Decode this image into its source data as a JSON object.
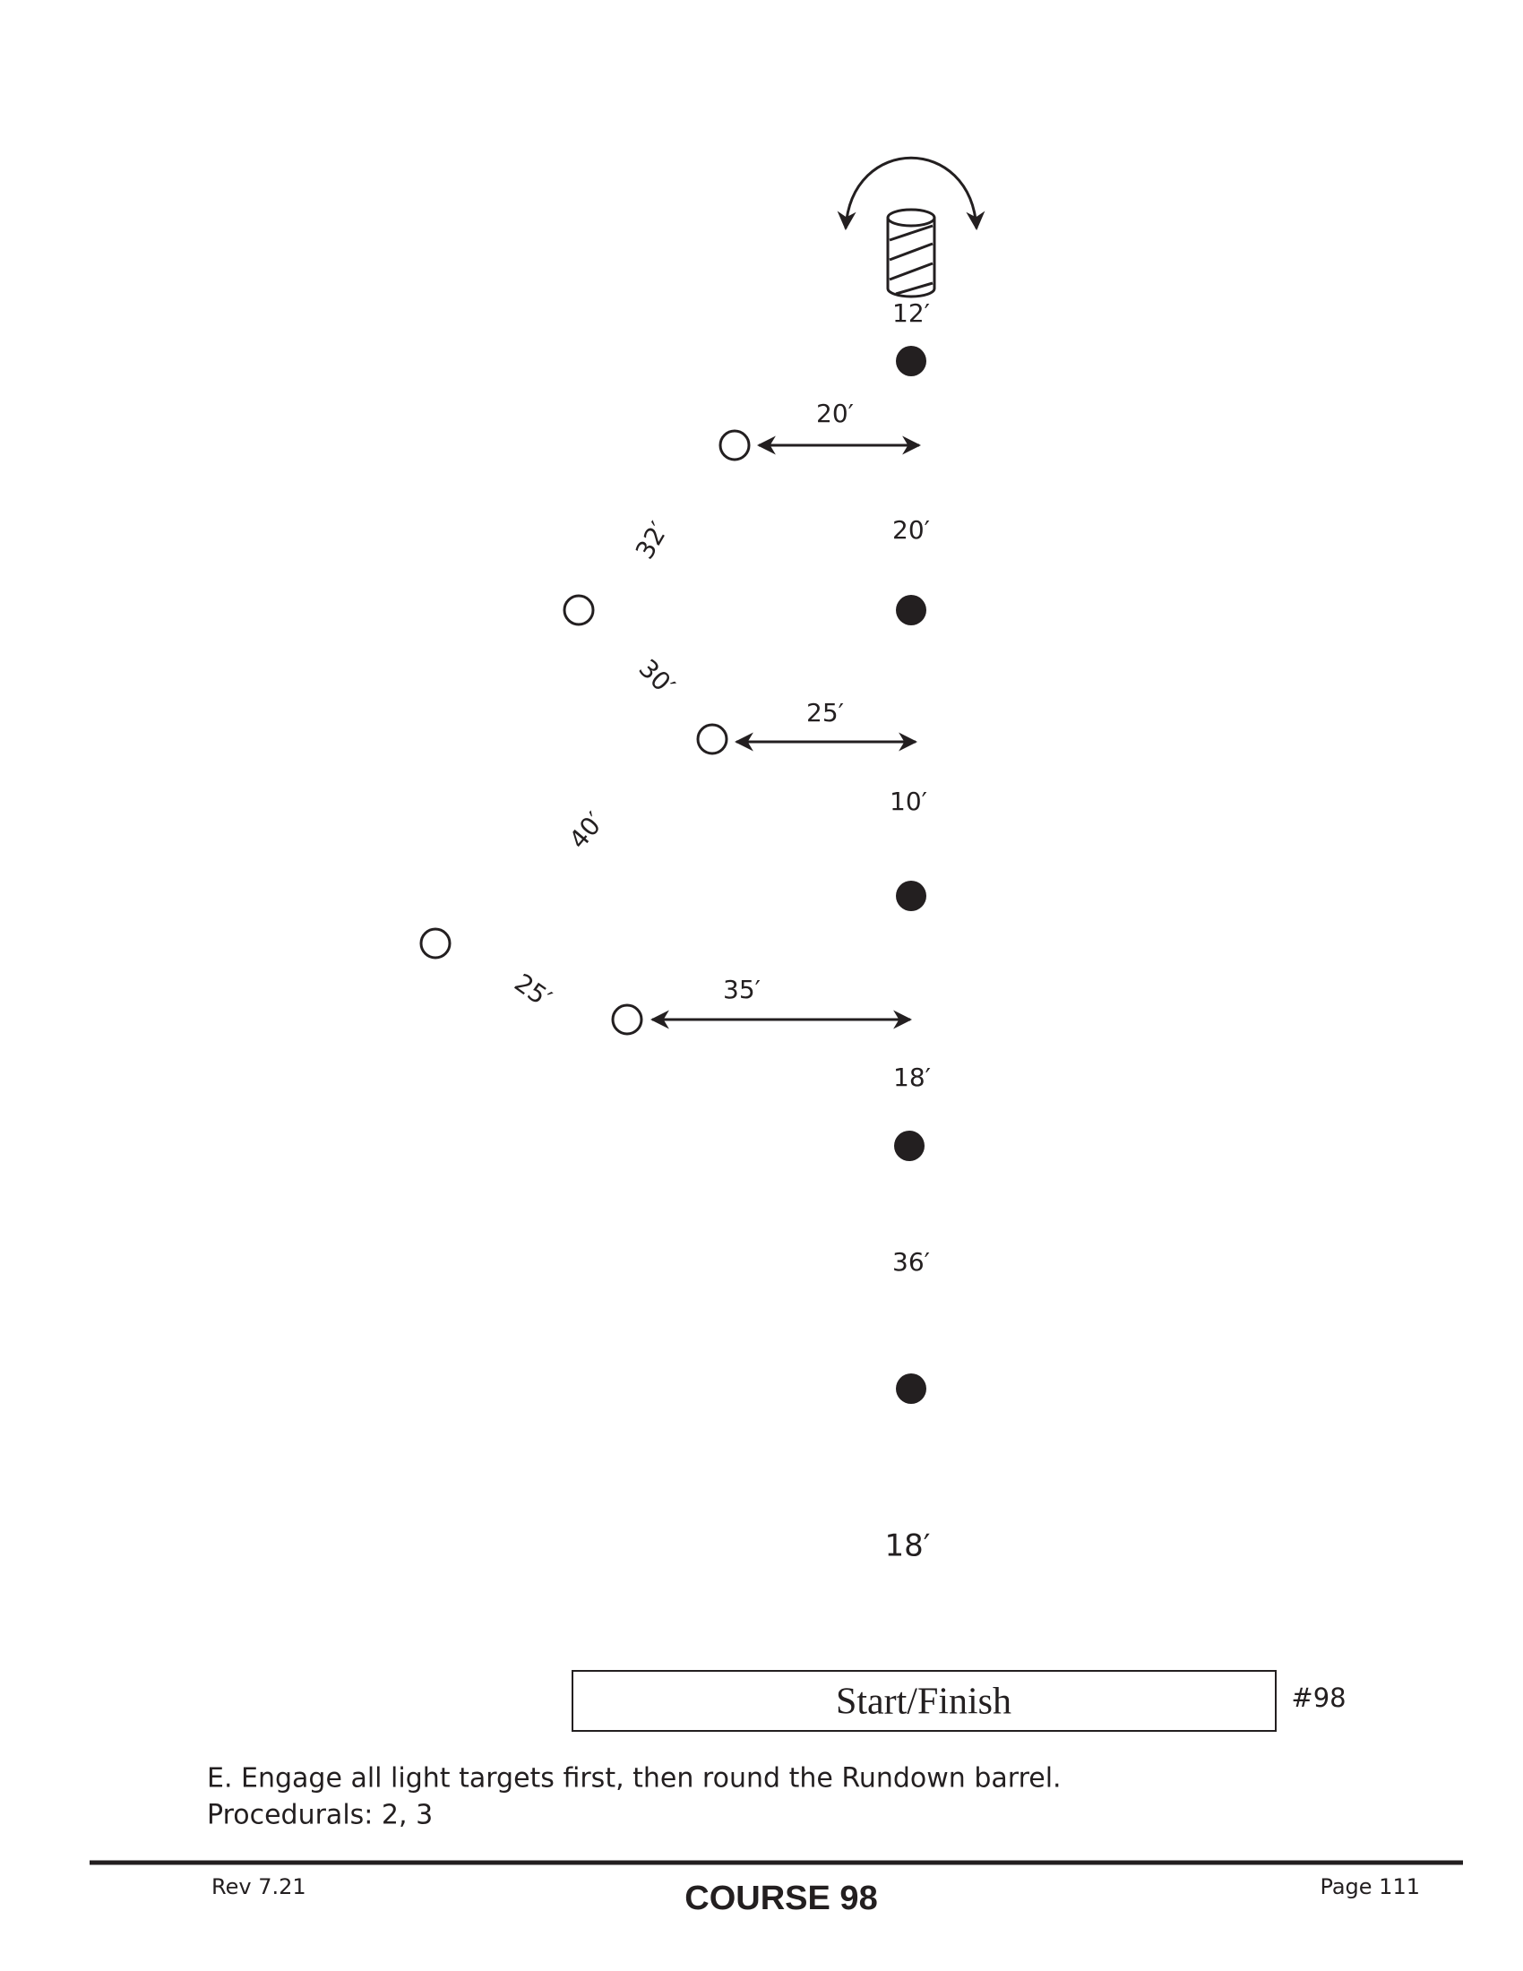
{
  "diagram": {
    "distances": [
      "12′",
      "20′",
      "32′",
      "20′",
      "30′",
      "25′",
      "10′",
      "40′",
      "25′",
      "35′",
      "18′",
      "36′",
      "18′"
    ],
    "start_box": "Start/Finish",
    "course_tag": "#98"
  },
  "instructions": [
    "E. Engage all light targets first, then round the Rundown barrel.",
    "Procedurals: 2, 3"
  ],
  "footer": {
    "revision": "Rev 7.21",
    "title": "COURSE 98",
    "page": "Page 111"
  }
}
